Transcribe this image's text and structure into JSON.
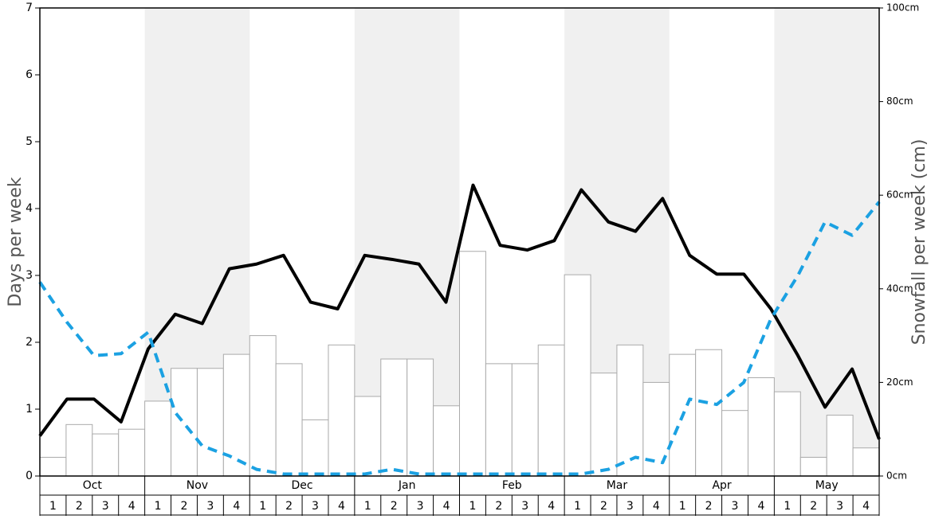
{
  "chart_data": {
    "type": "bar",
    "ylabel": "Days per week",
    "y2label": "Snowfall per week (cm)",
    "months": [
      "Oct",
      "Nov",
      "Dec",
      "Jan",
      "Feb",
      "Mar",
      "Apr",
      "May"
    ],
    "categories": [
      "1",
      "2",
      "3",
      "4",
      "1",
      "2",
      "3",
      "4",
      "1",
      "2",
      "3",
      "4",
      "1",
      "2",
      "3",
      "4",
      "1",
      "2",
      "3",
      "4",
      "1",
      "2",
      "3",
      "4",
      "1",
      "2",
      "3",
      "4",
      "1",
      "2",
      "3",
      "4"
    ],
    "ylim": [
      0,
      7
    ],
    "yticks": [
      0,
      1,
      2,
      3,
      4,
      5,
      6,
      7
    ],
    "y2lim": [
      0,
      100
    ],
    "y2ticks": [
      {
        "value": 0,
        "label": "0cm"
      },
      {
        "value": 20,
        "label": "20cm"
      },
      {
        "value": 40,
        "label": "40cm"
      },
      {
        "value": 60,
        "label": "60cm"
      },
      {
        "value": 80,
        "label": "80cm"
      },
      {
        "value": 100,
        "label": "100cm"
      }
    ],
    "shade_color": "#f0f0f0",
    "series": [
      {
        "type": "bar",
        "axis": "y2",
        "color": "#ffffff",
        "edge_color": "#aaaaaa",
        "values": [
          4,
          11,
          9,
          10,
          16,
          23,
          23,
          26,
          30,
          24,
          12,
          28,
          17,
          25,
          25,
          15,
          48,
          24,
          24,
          28,
          43,
          22,
          28,
          20,
          26,
          27,
          14,
          21,
          18,
          4,
          13,
          6
        ]
      },
      {
        "type": "line",
        "axis": "y",
        "color": "#000000",
        "style": "solid",
        "values": [
          0.6,
          1.15,
          1.15,
          0.81,
          1.9,
          2.42,
          2.28,
          3.1,
          3.17,
          3.3,
          2.6,
          2.5,
          3.3,
          3.24,
          3.17,
          2.6,
          4.35,
          3.45,
          3.38,
          3.52,
          4.28,
          3.8,
          3.66,
          4.15,
          3.3,
          3.02,
          3.02,
          2.5,
          1.8,
          1.03,
          1.6,
          0.55
        ]
      },
      {
        "type": "line",
        "axis": "y",
        "color": "#1ba1e2",
        "style": "dashed",
        "values": [
          2.9,
          2.3,
          1.8,
          1.83,
          2.15,
          0.95,
          0.45,
          0.3,
          0.1,
          0.03,
          0.03,
          0.03,
          0.03,
          0.1,
          0.03,
          0.03,
          0.03,
          0.03,
          0.03,
          0.03,
          0.03,
          0.1,
          0.28,
          0.2,
          1.15,
          1.07,
          1.4,
          2.35,
          3.0,
          3.8,
          3.6,
          4.1
        ]
      }
    ]
  }
}
